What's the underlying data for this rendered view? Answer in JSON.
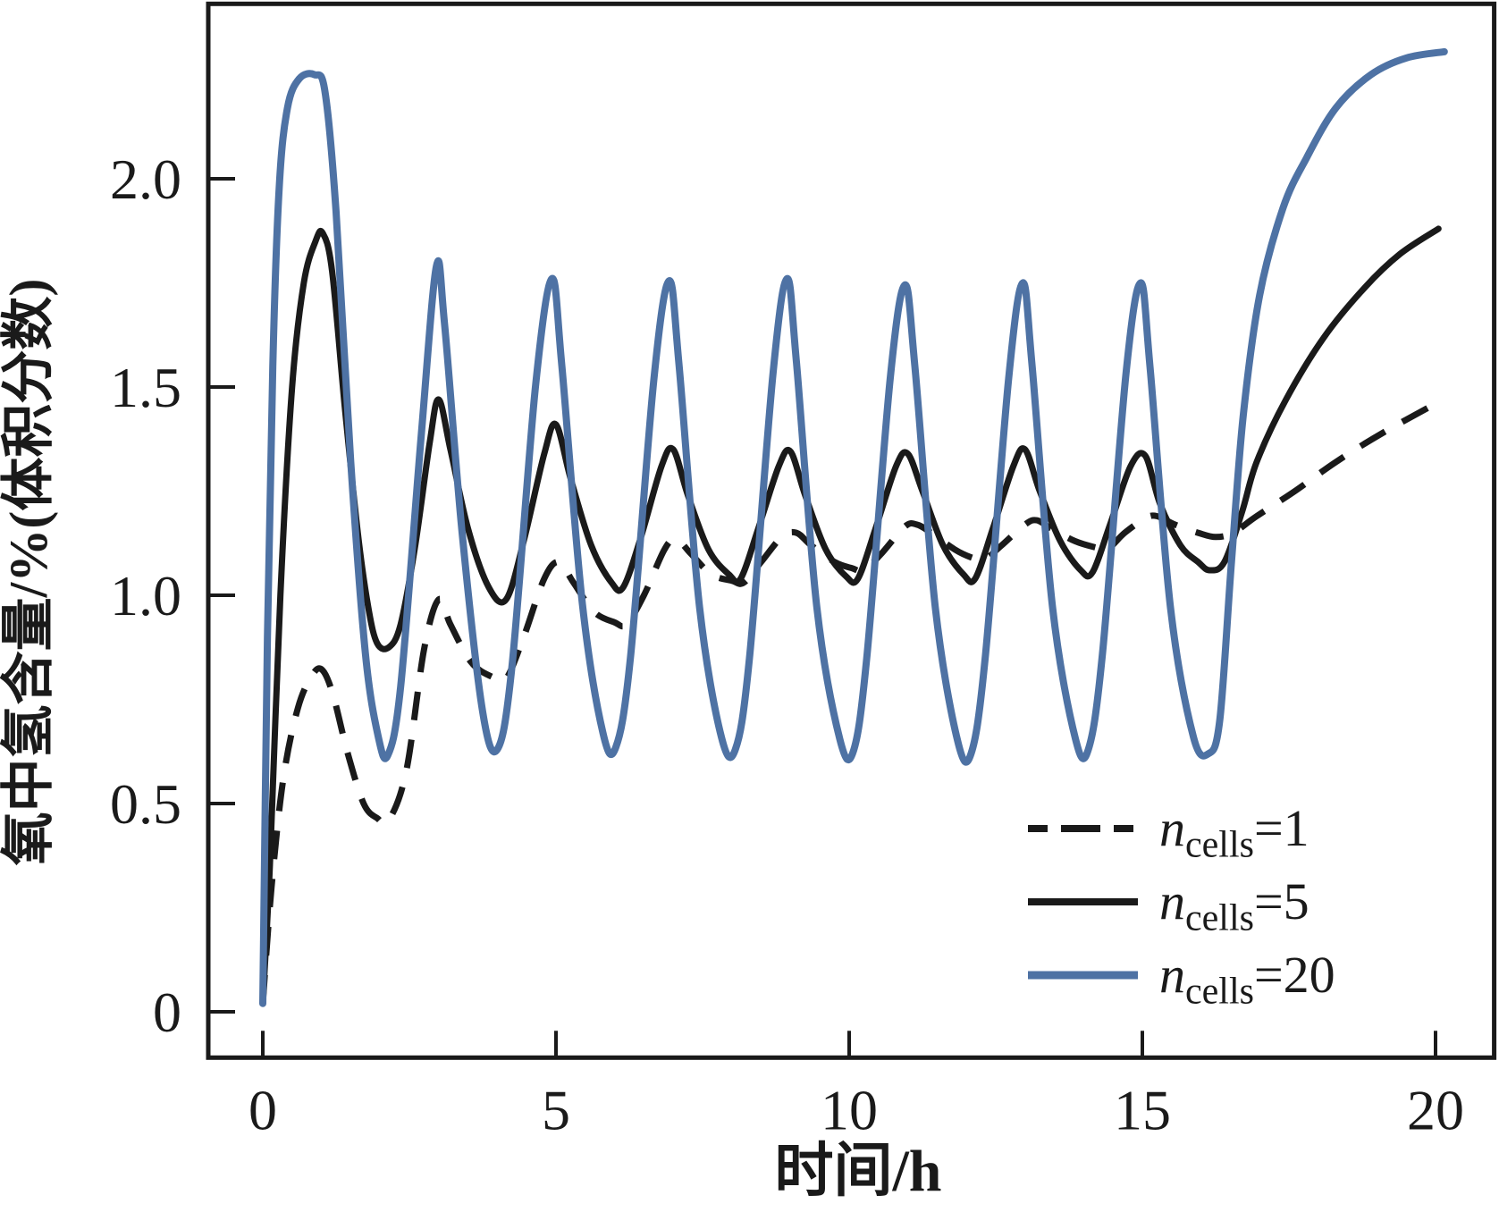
{
  "axes": {
    "x_title": "时间/h",
    "y_title": "氧中氢含量/%(体积分数)"
  },
  "legend": {
    "items": [
      {
        "var": "n",
        "sub": "cells",
        "eq": "=1"
      },
      {
        "var": "n",
        "sub": "cells",
        "eq": "=5"
      },
      {
        "var": "n",
        "sub": "cells",
        "eq": "=20"
      }
    ]
  },
  "chart_data": {
    "type": "line",
    "title": "",
    "xlabel": "时间/h",
    "ylabel": "氧中氢含量/%(体积分数)",
    "xlim": [
      -0.93,
      21.0
    ],
    "ylim": [
      -0.11,
      2.42
    ],
    "x_ticks": [
      0,
      5,
      10,
      15,
      20
    ],
    "x_tick_labels": [
      "0",
      "5",
      "10",
      "15",
      "20"
    ],
    "y_ticks": [
      0,
      0.5,
      1.0,
      1.5,
      2.0
    ],
    "y_tick_labels": [
      "0",
      "0.5",
      "1.0",
      "1.5",
      "2.0"
    ],
    "grid": false,
    "legend_position": "lower right",
    "series": [
      {
        "name": "ncells=1",
        "key": "ncells-1",
        "line": "dashed",
        "color": "#1a1a1a",
        "points": [
          [
            0,
            0.02
          ],
          [
            0.15,
            0.3
          ],
          [
            0.35,
            0.56
          ],
          [
            0.6,
            0.73
          ],
          [
            0.85,
            0.81
          ],
          [
            1.02,
            0.82
          ],
          [
            1.2,
            0.76
          ],
          [
            1.45,
            0.62
          ],
          [
            1.72,
            0.5
          ],
          [
            1.95,
            0.465
          ],
          [
            2.15,
            0.46
          ],
          [
            2.45,
            0.58
          ],
          [
            2.75,
            0.87
          ],
          [
            3.0,
            0.99
          ],
          [
            3.2,
            0.93
          ],
          [
            3.55,
            0.84
          ],
          [
            3.9,
            0.805
          ],
          [
            4.15,
            0.8
          ],
          [
            4.45,
            0.9
          ],
          [
            4.8,
            1.04
          ],
          [
            5.05,
            1.08
          ],
          [
            5.3,
            1.03
          ],
          [
            5.65,
            0.96
          ],
          [
            6.0,
            0.935
          ],
          [
            6.2,
            0.93
          ],
          [
            6.5,
            1.0
          ],
          [
            6.85,
            1.11
          ],
          [
            7.05,
            1.135
          ],
          [
            7.3,
            1.1
          ],
          [
            7.65,
            1.05
          ],
          [
            8.0,
            1.035
          ],
          [
            8.2,
            1.03
          ],
          [
            8.5,
            1.08
          ],
          [
            8.85,
            1.14
          ],
          [
            9.1,
            1.15
          ],
          [
            9.35,
            1.12
          ],
          [
            9.75,
            1.08
          ],
          [
            10.05,
            1.065
          ],
          [
            10.25,
            1.06
          ],
          [
            10.55,
            1.1
          ],
          [
            10.95,
            1.165
          ],
          [
            11.15,
            1.17
          ],
          [
            11.4,
            1.15
          ],
          [
            11.8,
            1.11
          ],
          [
            12.1,
            1.09
          ],
          [
            12.3,
            1.085
          ],
          [
            12.6,
            1.12
          ],
          [
            13.0,
            1.17
          ],
          [
            13.2,
            1.18
          ],
          [
            13.45,
            1.16
          ],
          [
            13.85,
            1.13
          ],
          [
            14.2,
            1.115
          ],
          [
            14.4,
            1.11
          ],
          [
            14.7,
            1.15
          ],
          [
            15.05,
            1.185
          ],
          [
            15.25,
            1.19
          ],
          [
            15.55,
            1.17
          ],
          [
            15.95,
            1.15
          ],
          [
            16.25,
            1.14
          ],
          [
            16.55,
            1.15
          ],
          [
            16.95,
            1.19
          ],
          [
            17.6,
            1.25
          ],
          [
            18.3,
            1.32
          ],
          [
            19.1,
            1.39
          ],
          [
            20.0,
            1.46
          ]
        ]
      },
      {
        "name": "ncells=5",
        "key": "ncells-5",
        "line": "solid",
        "color": "#1a1a1a",
        "points": [
          [
            0,
            0.02
          ],
          [
            0.12,
            0.35
          ],
          [
            0.3,
            1.0
          ],
          [
            0.5,
            1.5
          ],
          [
            0.7,
            1.75
          ],
          [
            0.9,
            1.85
          ],
          [
            1.02,
            1.87
          ],
          [
            1.18,
            1.78
          ],
          [
            1.4,
            1.45
          ],
          [
            1.62,
            1.15
          ],
          [
            1.8,
            0.97
          ],
          [
            1.95,
            0.885
          ],
          [
            2.15,
            0.875
          ],
          [
            2.35,
            0.93
          ],
          [
            2.6,
            1.12
          ],
          [
            2.85,
            1.37
          ],
          [
            3.0,
            1.47
          ],
          [
            3.2,
            1.35
          ],
          [
            3.5,
            1.16
          ],
          [
            3.85,
            1.02
          ],
          [
            4.15,
            0.99
          ],
          [
            4.45,
            1.13
          ],
          [
            4.8,
            1.34
          ],
          [
            5.0,
            1.41
          ],
          [
            5.25,
            1.28
          ],
          [
            5.6,
            1.12
          ],
          [
            5.95,
            1.03
          ],
          [
            6.15,
            1.02
          ],
          [
            6.45,
            1.14
          ],
          [
            6.8,
            1.31
          ],
          [
            7.0,
            1.35
          ],
          [
            7.25,
            1.24
          ],
          [
            7.6,
            1.11
          ],
          [
            7.95,
            1.05
          ],
          [
            8.15,
            1.04
          ],
          [
            8.45,
            1.16
          ],
          [
            8.8,
            1.31
          ],
          [
            9.0,
            1.345
          ],
          [
            9.25,
            1.24
          ],
          [
            9.6,
            1.11
          ],
          [
            9.95,
            1.045
          ],
          [
            10.15,
            1.04
          ],
          [
            10.45,
            1.16
          ],
          [
            10.8,
            1.31
          ],
          [
            11.0,
            1.34
          ],
          [
            11.25,
            1.25
          ],
          [
            11.6,
            1.12
          ],
          [
            11.95,
            1.05
          ],
          [
            12.15,
            1.04
          ],
          [
            12.45,
            1.16
          ],
          [
            12.8,
            1.31
          ],
          [
            13.0,
            1.35
          ],
          [
            13.25,
            1.25
          ],
          [
            13.6,
            1.13
          ],
          [
            13.95,
            1.06
          ],
          [
            14.15,
            1.055
          ],
          [
            14.45,
            1.17
          ],
          [
            14.8,
            1.31
          ],
          [
            15.05,
            1.335
          ],
          [
            15.3,
            1.22
          ],
          [
            15.65,
            1.12
          ],
          [
            15.95,
            1.08
          ],
          [
            16.15,
            1.06
          ],
          [
            16.4,
            1.08
          ],
          [
            16.7,
            1.2
          ],
          [
            16.95,
            1.32
          ],
          [
            17.45,
            1.47
          ],
          [
            18.1,
            1.62
          ],
          [
            18.8,
            1.74
          ],
          [
            19.4,
            1.82
          ],
          [
            20.05,
            1.88
          ]
        ]
      },
      {
        "name": "ncells=20",
        "key": "ncells-20",
        "line": "solid",
        "color": "#4e72a4",
        "points": [
          [
            0,
            0.02
          ],
          [
            0.08,
            0.9
          ],
          [
            0.17,
            1.55
          ],
          [
            0.28,
            1.98
          ],
          [
            0.42,
            2.17
          ],
          [
            0.62,
            2.24
          ],
          [
            0.88,
            2.25
          ],
          [
            1.06,
            2.21
          ],
          [
            1.25,
            1.92
          ],
          [
            1.5,
            1.32
          ],
          [
            1.75,
            0.86
          ],
          [
            1.97,
            0.66
          ],
          [
            2.13,
            0.615
          ],
          [
            2.35,
            0.78
          ],
          [
            2.7,
            1.38
          ],
          [
            2.96,
            1.79
          ],
          [
            3.1,
            1.65
          ],
          [
            3.4,
            1.15
          ],
          [
            3.75,
            0.72
          ],
          [
            4.0,
            0.63
          ],
          [
            4.25,
            0.83
          ],
          [
            4.65,
            1.5
          ],
          [
            4.93,
            1.76
          ],
          [
            5.1,
            1.55
          ],
          [
            5.45,
            0.98
          ],
          [
            5.8,
            0.67
          ],
          [
            6.02,
            0.635
          ],
          [
            6.27,
            0.85
          ],
          [
            6.67,
            1.52
          ],
          [
            6.93,
            1.755
          ],
          [
            7.1,
            1.55
          ],
          [
            7.45,
            0.97
          ],
          [
            7.82,
            0.66
          ],
          [
            8.06,
            0.63
          ],
          [
            8.3,
            0.85
          ],
          [
            8.7,
            1.53
          ],
          [
            8.94,
            1.76
          ],
          [
            9.1,
            1.56
          ],
          [
            9.45,
            0.97
          ],
          [
            9.84,
            0.655
          ],
          [
            10.07,
            0.625
          ],
          [
            10.3,
            0.85
          ],
          [
            10.7,
            1.52
          ],
          [
            10.95,
            1.745
          ],
          [
            11.12,
            1.55
          ],
          [
            11.47,
            0.97
          ],
          [
            11.85,
            0.65
          ],
          [
            12.08,
            0.62
          ],
          [
            12.32,
            0.85
          ],
          [
            12.72,
            1.52
          ],
          [
            12.96,
            1.75
          ],
          [
            13.12,
            1.55
          ],
          [
            13.47,
            0.97
          ],
          [
            13.86,
            0.655
          ],
          [
            14.08,
            0.63
          ],
          [
            14.32,
            0.86
          ],
          [
            14.72,
            1.53
          ],
          [
            14.97,
            1.75
          ],
          [
            15.13,
            1.55
          ],
          [
            15.48,
            0.97
          ],
          [
            15.87,
            0.66
          ],
          [
            16.13,
            0.62
          ],
          [
            16.32,
            0.7
          ],
          [
            16.52,
            1.08
          ],
          [
            16.72,
            1.43
          ],
          [
            17.0,
            1.72
          ],
          [
            17.4,
            1.93
          ],
          [
            17.8,
            2.05
          ],
          [
            18.3,
            2.17
          ],
          [
            18.9,
            2.25
          ],
          [
            19.5,
            2.29
          ],
          [
            20.15,
            2.305
          ]
        ]
      }
    ]
  }
}
